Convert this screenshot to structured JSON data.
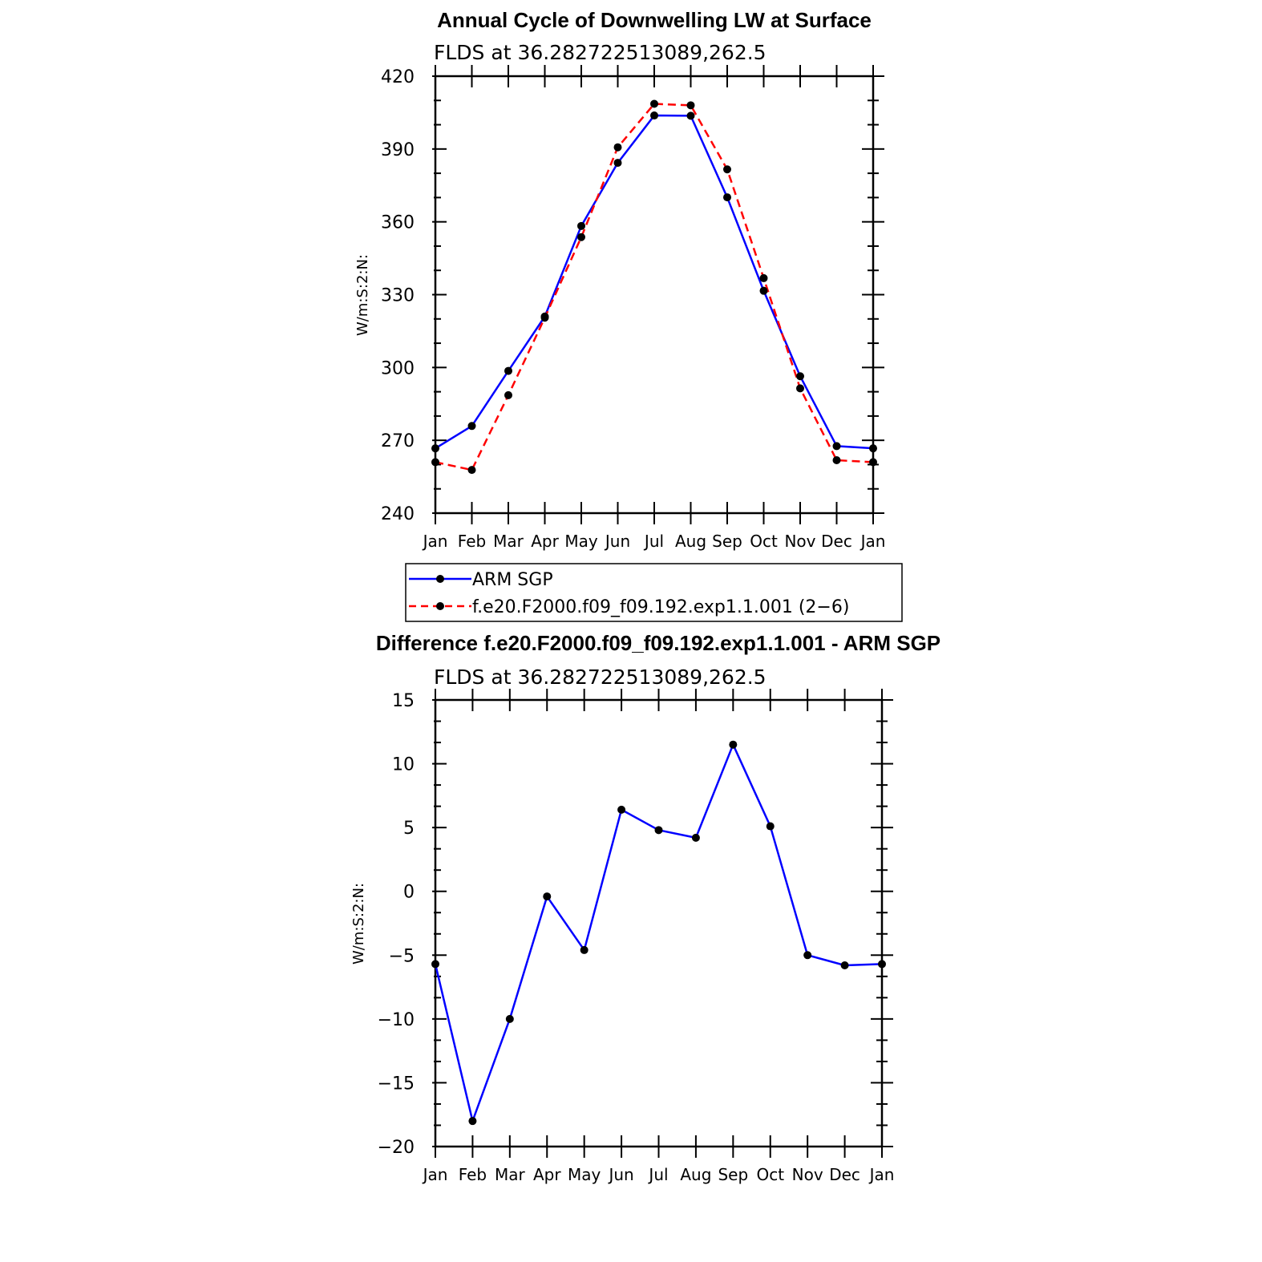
{
  "colors": {
    "obs": "#0000ff",
    "model": "#ff0000",
    "marker": "#000000",
    "axis": "#000000"
  },
  "months": [
    "Jan",
    "Feb",
    "Mar",
    "Apr",
    "May",
    "Jun",
    "Jul",
    "Aug",
    "Sep",
    "Oct",
    "Nov",
    "Dec",
    "Jan"
  ],
  "chart_data": [
    {
      "type": "line",
      "title": "Annual Cycle of Downwelling LW at Surface",
      "subtitle": "FLDS at 36.282722513089,262.5",
      "xlabel": "",
      "ylabel": "W/m:S:2:N:",
      "ylim": [
        240,
        420
      ],
      "yticks": [
        240,
        270,
        300,
        330,
        360,
        390,
        420
      ],
      "ytick_labels": [
        "240",
        "270",
        "300",
        "330",
        "360",
        "390",
        "420"
      ],
      "categories": [
        "Jan",
        "Feb",
        "Mar",
        "Apr",
        "May",
        "Jun",
        "Jul",
        "Aug",
        "Sep",
        "Oct",
        "Nov",
        "Dec",
        "Jan"
      ],
      "series": [
        {
          "name": "ARM SGP",
          "style": "solid",
          "values": [
            266.7,
            275.9,
            298.6,
            321.0,
            358.3,
            384.3,
            403.8,
            403.7,
            370.1,
            331.6,
            296.4,
            267.6,
            266.7
          ]
        },
        {
          "name": "f.e20.F2000.f09_f09.192.exp1.1.001 (2−6)",
          "style": "dashed",
          "values": [
            261.0,
            257.8,
            288.6,
            320.5,
            353.7,
            390.7,
            408.6,
            408.0,
            381.6,
            336.8,
            291.4,
            261.8,
            261.0
          ]
        }
      ],
      "legend": {
        "position": "below",
        "entries": [
          "ARM SGP",
          "f.e20.F2000.f09_f09.192.exp1.1.001 (2−6)"
        ]
      }
    },
    {
      "type": "line",
      "title": "Difference f.e20.F2000.f09_f09.192.exp1.1.001 - ARM SGP",
      "subtitle": "FLDS at 36.282722513089,262.5",
      "xlabel": "",
      "ylabel": "W/m:S:2:N:",
      "ylim": [
        -20,
        15
      ],
      "yticks": [
        -20,
        -15,
        -10,
        -5,
        0,
        5,
        10,
        15
      ],
      "ytick_labels": [
        "−20",
        "−15",
        "−10",
        "−5",
        "0",
        "5",
        "10",
        "15"
      ],
      "categories": [
        "Jan",
        "Feb",
        "Mar",
        "Apr",
        "May",
        "Jun",
        "Jul",
        "Aug",
        "Sep",
        "Oct",
        "Nov",
        "Dec",
        "Jan"
      ],
      "series": [
        {
          "name": "Difference",
          "style": "solid",
          "values": [
            -5.7,
            -18.0,
            -10.0,
            -0.4,
            -4.6,
            6.4,
            4.8,
            4.2,
            11.5,
            5.1,
            -5.0,
            -5.8,
            -5.7
          ]
        }
      ]
    }
  ]
}
